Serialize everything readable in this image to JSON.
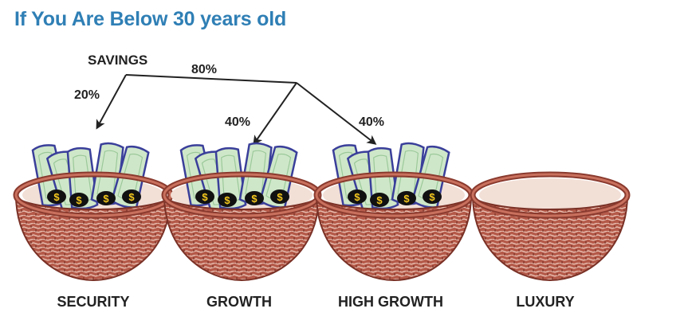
{
  "title": "If You Are Below 30 years old",
  "source": {
    "label": "SAVINGS"
  },
  "splits": {
    "left": "20%",
    "right": "80%"
  },
  "baskets": [
    {
      "label": "SECURITY",
      "allocation": "20%",
      "filled": true
    },
    {
      "label": "GROWTH",
      "allocation": "40%",
      "filled": true
    },
    {
      "label": "HIGH GROWTH",
      "allocation": "40%",
      "filled": true
    },
    {
      "label": "LUXURY",
      "allocation": "",
      "filled": false
    }
  ],
  "colors": {
    "title": "#2f7fb5",
    "basket": "#b55a4a",
    "basket_dark": "#7a3126",
    "bill_green": "#cfe7c9",
    "bill_edge": "#3a3f9a",
    "coin": "#111111",
    "coin_symbol": "#f4c81e"
  },
  "icons": {
    "money": "dollar-bill-icon",
    "basket": "basket-icon",
    "arrow": "arrow-icon"
  }
}
